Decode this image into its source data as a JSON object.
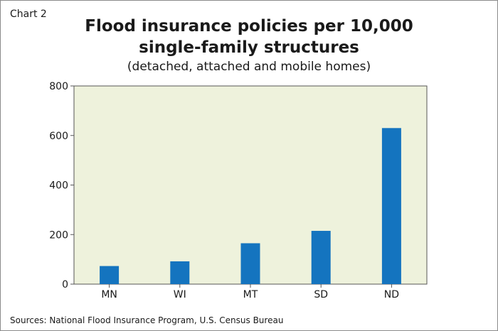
{
  "chart_label": "Chart 2",
  "source": "Sources: National Flood Insurance Program, U.S. Census Bureau",
  "colors": {
    "bar": "#1474bf",
    "plot_bg": "#eef2dc",
    "axis": "#555555"
  },
  "chart_data": {
    "type": "bar",
    "title": "Flood insurance policies per 10,000\nsingle-family structures",
    "subtitle": "(detached, attached and mobile homes)",
    "categories": [
      "MN",
      "WI",
      "MT",
      "SD",
      "ND"
    ],
    "values": [
      73,
      92,
      165,
      215,
      630
    ],
    "ylim": [
      0,
      800
    ],
    "yticks": [
      0,
      200,
      400,
      600,
      800
    ],
    "xlabel": "",
    "ylabel": "",
    "grid": false,
    "legend": "none"
  }
}
